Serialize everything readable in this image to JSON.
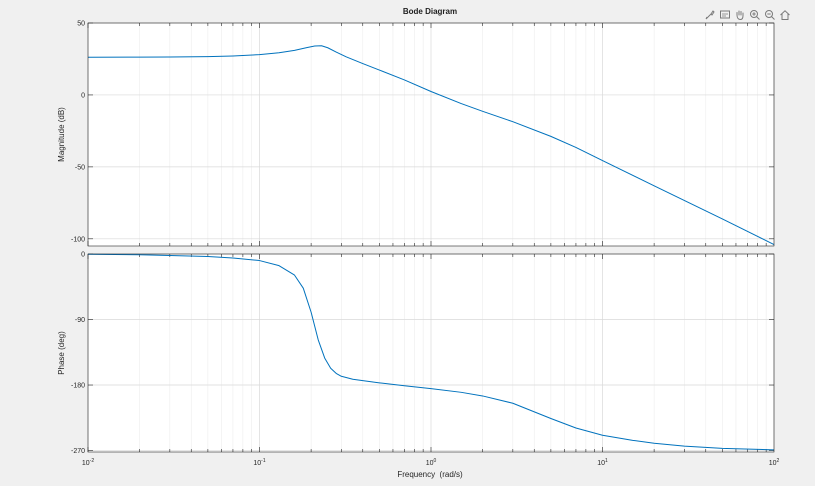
{
  "chart_data": {
    "type": "line",
    "title": "Bode Diagram",
    "xlabel": "Frequency  (rad/s)",
    "xscale": "log",
    "xlim": [
      0.01,
      100
    ],
    "x_ticks": [
      0.01,
      0.1,
      1,
      10,
      100
    ],
    "x_tick_labels": [
      {
        "base": "10",
        "exp": "-2"
      },
      {
        "base": "10",
        "exp": "-1"
      },
      {
        "base": "10",
        "exp": "0"
      },
      {
        "base": "10",
        "exp": "1"
      },
      {
        "base": "10",
        "exp": "2"
      }
    ],
    "grid": true,
    "line_color": "#0072bd",
    "panels": [
      {
        "id": "magnitude",
        "ylabel": "Magnitude (dB)",
        "ylim": [
          -105,
          50
        ],
        "yticks": [
          50,
          0,
          -50,
          -100
        ],
        "ytick_labels": [
          "50",
          "0",
          "-50",
          "-100"
        ],
        "series": [
          {
            "x": [
              0.01,
              0.02,
              0.03,
              0.05,
              0.07,
              0.1,
              0.13,
              0.16,
              0.19,
              0.21,
              0.23,
              0.25,
              0.28,
              0.32,
              0.4,
              0.5,
              0.7,
              1,
              1.5,
              2,
              3,
              5,
              7,
              10,
              20,
              50,
              100
            ],
            "y": [
              26.2,
              26.3,
              26.4,
              26.6,
              27.1,
              28.0,
              29.3,
              31.0,
              33.0,
              34.0,
              34.2,
              32.8,
              29.8,
              26.5,
              21.8,
              17.3,
              10.4,
              2.4,
              -6.0,
              -11.4,
              -18.6,
              -28.8,
              -36.5,
              -45.6,
              -63.2,
              -86.2,
              -104.0
            ]
          }
        ]
      },
      {
        "id": "phase",
        "ylabel": "Phase (deg)",
        "ylim": [
          -272,
          0
        ],
        "yticks": [
          0,
          -90,
          -180,
          -270
        ],
        "ytick_labels": [
          "0",
          "-90",
          "-180",
          "-270"
        ],
        "series": [
          {
            "x": [
              0.01,
              0.02,
              0.03,
              0.05,
              0.07,
              0.1,
              0.13,
              0.16,
              0.18,
              0.2,
              0.22,
              0.24,
              0.26,
              0.28,
              0.3,
              0.35,
              0.4,
              0.5,
              0.7,
              1,
              1.5,
              2,
              3,
              5,
              7,
              10,
              15,
              20,
              30,
              50,
              100
            ],
            "y": [
              -0.3,
              -1,
              -2,
              -3.5,
              -5.5,
              -9,
              -16,
              -29,
              -47,
              -80,
              -118,
              -143,
              -157,
              -164,
              -168,
              -172,
              -174,
              -177,
              -181,
              -185,
              -190,
              -195,
              -205,
              -226,
              -239,
              -249,
              -256,
              -260,
              -264,
              -267,
              -269
            ]
          }
        ]
      }
    ]
  },
  "toolbar": {
    "icons": [
      "brush-icon",
      "data-tip-icon",
      "pan-icon",
      "zoom-in-icon",
      "zoom-out-icon",
      "home-icon"
    ]
  }
}
